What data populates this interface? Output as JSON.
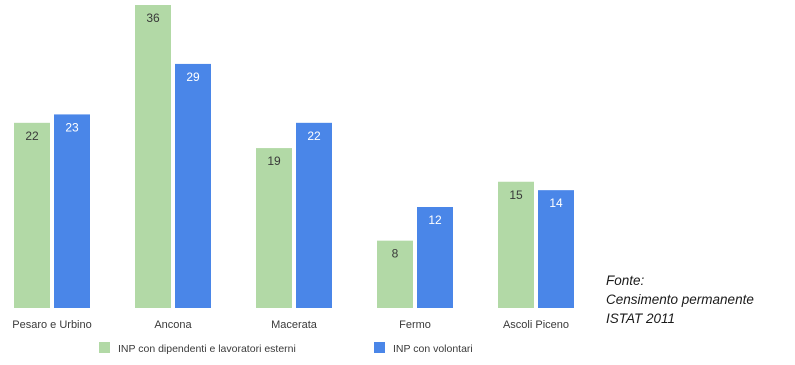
{
  "chart_data": {
    "type": "bar",
    "categories": [
      "Pesaro e Urbino",
      "Ancona",
      "Macerata",
      "Fermo",
      "Ascoli Piceno"
    ],
    "series": [
      {
        "name": "INP con dipendenti e lavoratori esterni",
        "values": [
          22,
          36,
          19,
          8,
          15
        ],
        "color": "#b2d9a6"
      },
      {
        "name": "INP con volontari",
        "values": [
          23,
          29,
          22,
          12,
          14
        ],
        "color": "#4a86e8"
      }
    ],
    "ylim": [
      0,
      36
    ],
    "grid": false,
    "legend_position": "bottom-center",
    "data_labels": true
  },
  "source_note": {
    "label": "Fonte:",
    "line1": "Censimento permanente",
    "line2": "ISTAT 2011"
  }
}
